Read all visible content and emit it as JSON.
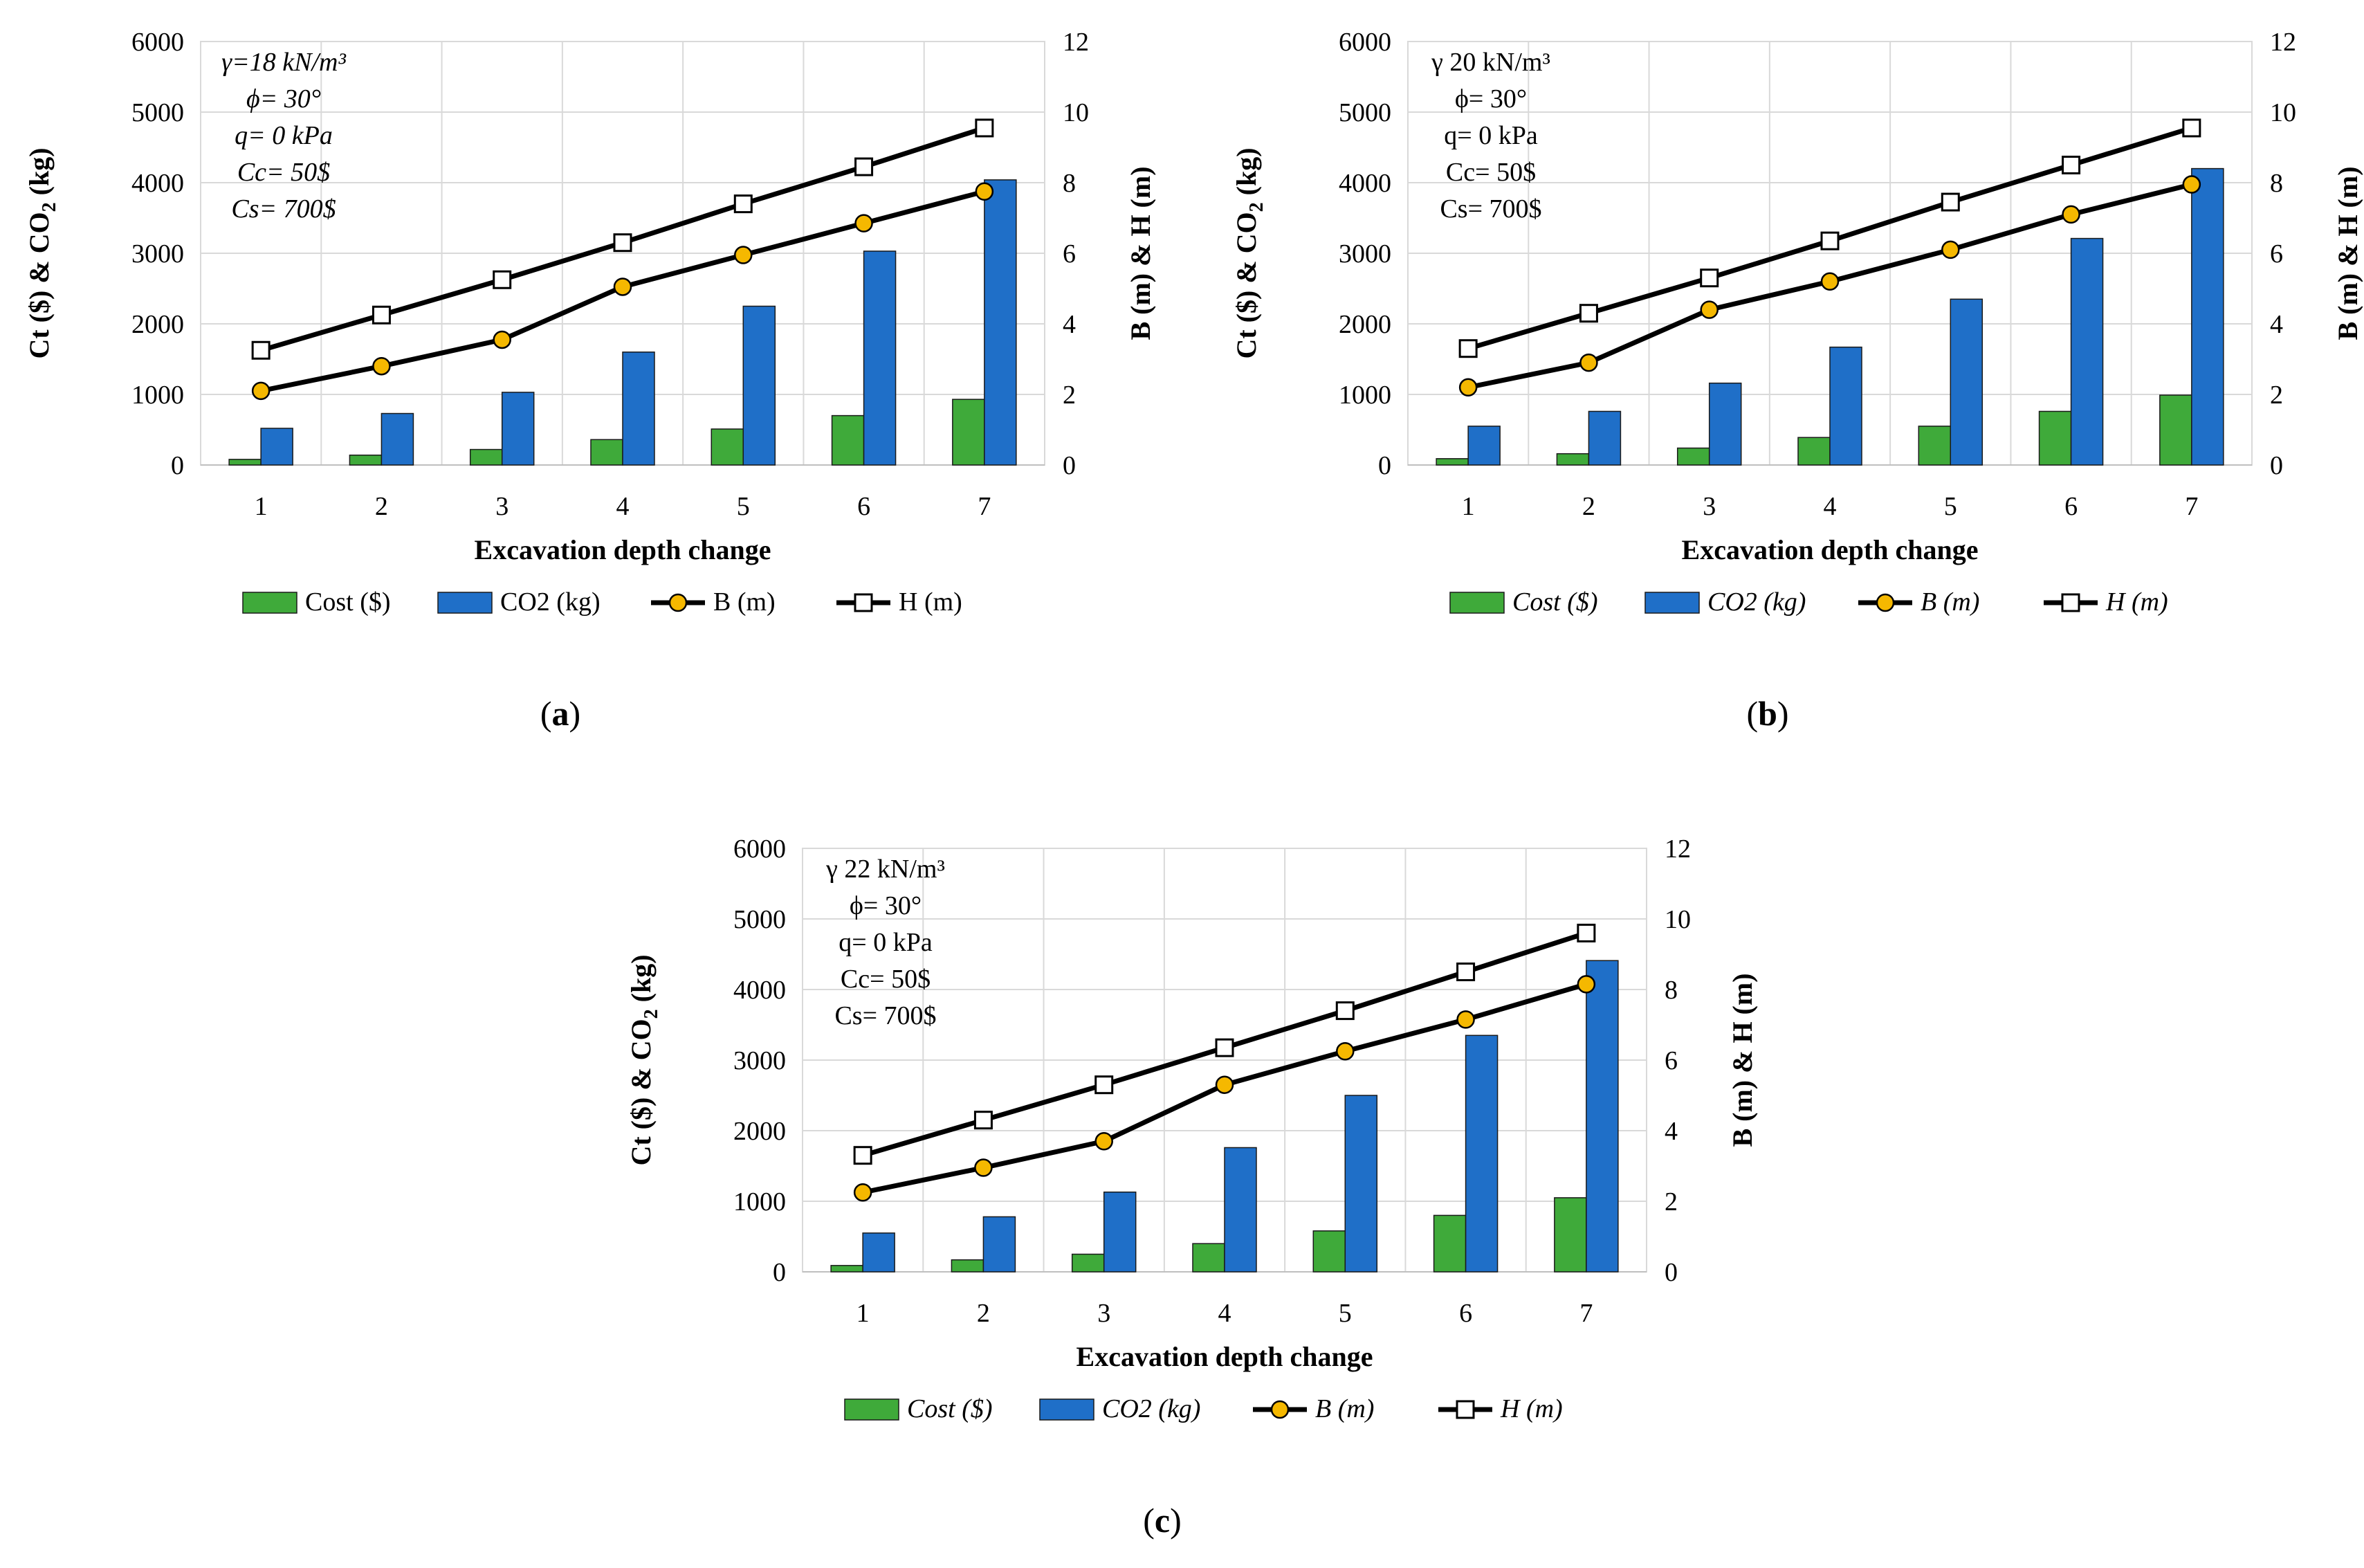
{
  "chart_data": [
    {
      "type": "bar",
      "panel_label": "a",
      "xlabel": "Excavation depth change",
      "ylabel_left": [
        "Ct ($) & CO",
        "2",
        " (kg)"
      ],
      "ylabel_right": "B (m) & H (m)",
      "ylim_left": [
        0,
        6000
      ],
      "ylim_right": [
        0,
        12
      ],
      "yticks_left": [
        "0",
        "1000",
        "2000",
        "3000",
        "4000",
        "5000",
        "6000"
      ],
      "yticks_right": [
        "0",
        "2",
        "4",
        "6",
        "8",
        "10",
        "12"
      ],
      "categories": [
        "1",
        "2",
        "3",
        "4",
        "5",
        "6",
        "7"
      ],
      "legend_italic": false,
      "annotation_italic": true,
      "annotation": [
        "γ=18 kN/m³",
        "ϕ= 30°",
        "q= 0 kPa",
        "Cc= 50$",
        "Cs= 700$"
      ],
      "series": [
        {
          "name": "Cost ($)",
          "kind": "bar",
          "axis": "left",
          "color": "#3faa3a",
          "values": [
            80,
            140,
            220,
            360,
            510,
            700,
            930
          ]
        },
        {
          "name": "CO2 (kg)",
          "kind": "bar",
          "axis": "left",
          "color": "#1f6fc8",
          "values": [
            520,
            730,
            1030,
            1600,
            2250,
            3030,
            4040
          ]
        },
        {
          "name": "B (m)",
          "kind": "line",
          "axis": "right",
          "marker": "circle",
          "marker_color": "#f5b800",
          "values": [
            2.1,
            2.8,
            3.55,
            5.05,
            5.95,
            6.85,
            7.75
          ]
        },
        {
          "name": "H (m)",
          "kind": "line",
          "axis": "right",
          "marker": "square",
          "marker_color": "#ffffff",
          "values": [
            3.25,
            4.25,
            5.25,
            6.3,
            7.4,
            8.45,
            9.55
          ]
        }
      ]
    },
    {
      "type": "bar",
      "panel_label": "b",
      "xlabel": "Excavation depth change",
      "ylabel_left": [
        "Ct ($) &  CO",
        "2",
        " (kg)"
      ],
      "ylabel_right": "B (m) & H (m)",
      "ylim_left": [
        0,
        6000
      ],
      "ylim_right": [
        0,
        12
      ],
      "yticks_left": [
        "0",
        "1000",
        "2000",
        "3000",
        "4000",
        "5000",
        "6000"
      ],
      "yticks_right": [
        "0",
        "2",
        "4",
        "6",
        "8",
        "10",
        "12"
      ],
      "categories": [
        "1",
        "2",
        "3",
        "4",
        "5",
        "6",
        "7"
      ],
      "legend_italic": true,
      "annotation_italic": false,
      "annotation": [
        "γ  20 kN/m³",
        "ϕ= 30°",
        "q= 0 kPa",
        "Cc= 50$",
        "Cs= 700$"
      ],
      "series": [
        {
          "name": "Cost ($)",
          "kind": "bar",
          "axis": "left",
          "color": "#3faa3a",
          "values": [
            90,
            160,
            240,
            390,
            550,
            760,
            990
          ]
        },
        {
          "name": "CO2 (kg)",
          "kind": "bar",
          "axis": "left",
          "color": "#1f6fc8",
          "values": [
            550,
            760,
            1160,
            1670,
            2350,
            3210,
            4200
          ]
        },
        {
          "name": "B (m)",
          "kind": "line",
          "axis": "right",
          "marker": "circle",
          "marker_color": "#f5b800",
          "values": [
            2.2,
            2.9,
            4.4,
            5.2,
            6.1,
            7.1,
            7.95
          ]
        },
        {
          "name": "H (m)",
          "kind": "line",
          "axis": "right",
          "marker": "square",
          "marker_color": "#ffffff",
          "values": [
            3.3,
            4.3,
            5.3,
            6.35,
            7.45,
            8.5,
            9.55
          ]
        }
      ]
    },
    {
      "type": "bar",
      "panel_label": "c",
      "xlabel": "Excavation depth change",
      "ylabel_left": [
        "Ct ($) & CO",
        "2",
        " (kg)"
      ],
      "ylabel_right": "B (m) & H (m)",
      "ylim_left": [
        0,
        6000
      ],
      "ylim_right": [
        0,
        12
      ],
      "yticks_left": [
        "0",
        "1000",
        "2000",
        "3000",
        "4000",
        "5000",
        "6000"
      ],
      "yticks_right": [
        "0",
        "2",
        "4",
        "6",
        "8",
        "10",
        "12"
      ],
      "categories": [
        "1",
        "2",
        "3",
        "4",
        "5",
        "6",
        "7"
      ],
      "legend_italic": true,
      "annotation_italic": false,
      "annotation": [
        "γ  22 kN/m³",
        "ϕ= 30°",
        "q= 0 kPa",
        "Cc= 50$",
        "Cs= 700$"
      ],
      "series": [
        {
          "name": "Cost ($)",
          "kind": "bar",
          "axis": "left",
          "color": "#3faa3a",
          "values": [
            90,
            170,
            250,
            400,
            580,
            800,
            1050
          ]
        },
        {
          "name": "CO2 (kg)",
          "kind": "bar",
          "axis": "left",
          "color": "#1f6fc8",
          "values": [
            550,
            780,
            1130,
            1760,
            2500,
            3350,
            4410
          ]
        },
        {
          "name": "B (m)",
          "kind": "line",
          "axis": "right",
          "marker": "circle",
          "marker_color": "#f5b800",
          "values": [
            2.25,
            2.95,
            3.7,
            5.3,
            6.25,
            7.15,
            8.15
          ]
        },
        {
          "name": "H (m)",
          "kind": "line",
          "axis": "right",
          "marker": "square",
          "marker_color": "#ffffff",
          "values": [
            3.3,
            4.3,
            5.3,
            6.35,
            7.4,
            8.5,
            9.6
          ]
        }
      ]
    }
  ]
}
